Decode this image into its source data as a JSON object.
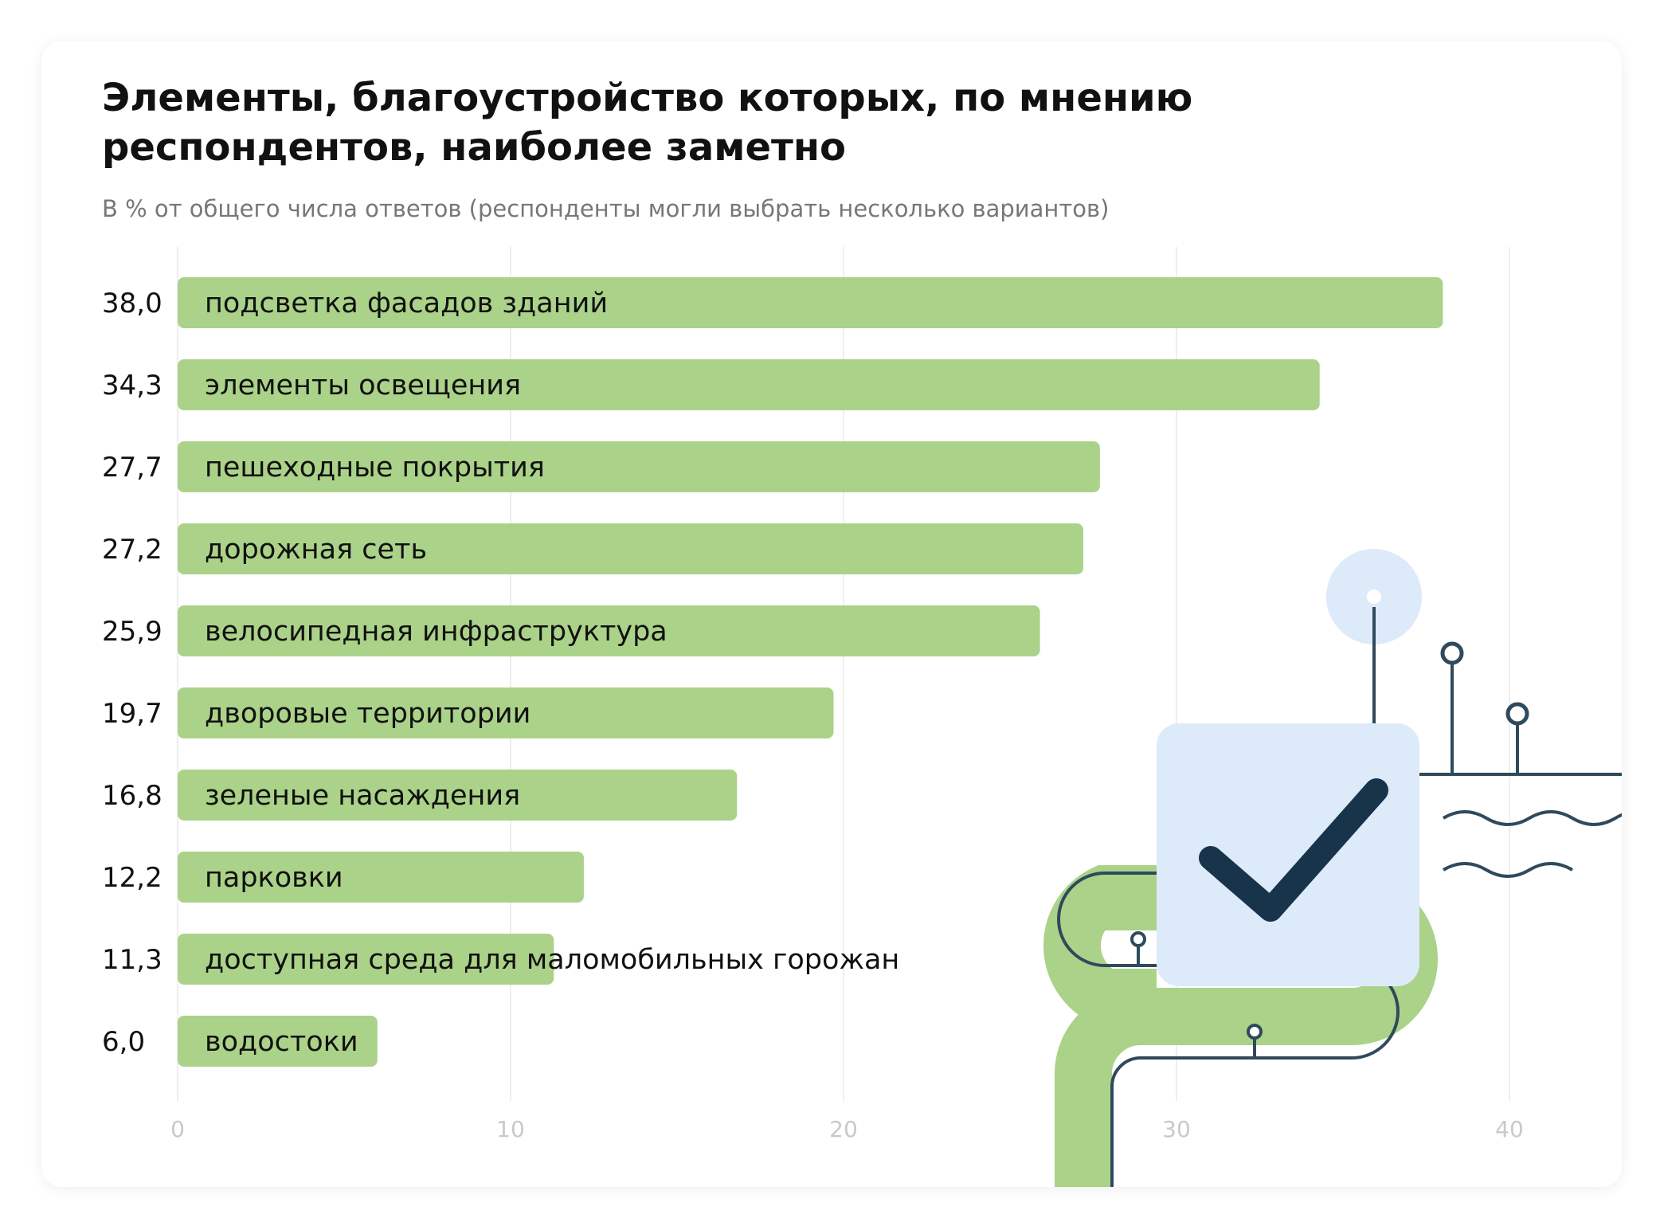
{
  "colors": {
    "bar": "#abd289",
    "grid": "#eeeeee",
    "accent_light": "#ddeafa",
    "accent_dark": "#18344a",
    "line": "#2f4a5c"
  },
  "decoration": {
    "icon": "checkmark-icon"
  },
  "chart_data": {
    "type": "bar",
    "orientation": "horizontal",
    "title": "Элементы, благоустройство которых, по мнению респондентов, наиболее заметно",
    "subtitle": "В % от общего числа ответов (респонденты могли выбрать несколько вариантов)",
    "categories": [
      "подсветка фасадов зданий",
      "элементы освещения",
      "пешеходные покрытия",
      "дорожная сеть",
      "велосипедная инфраструктура",
      "дворовые территории",
      "зеленые насаждения",
      "парковки",
      "доступная среда для маломобильных горожан",
      "водостоки"
    ],
    "values": [
      38.0,
      34.3,
      27.7,
      27.2,
      25.9,
      19.7,
      16.8,
      12.2,
      11.3,
      6.0
    ],
    "value_labels": [
      "38,0",
      "34,3",
      "27,7",
      "27,2",
      "25,9",
      "19,7",
      "16,8",
      "12,2",
      "11,3",
      "6,0"
    ],
    "xlim": [
      0,
      40
    ],
    "xticks": [
      0,
      10,
      20,
      30,
      40
    ],
    "xtick_labels": [
      "0",
      "10",
      "20",
      "30",
      "40"
    ],
    "xlabel": "",
    "ylabel": "",
    "grid": true,
    "legend": "none"
  }
}
